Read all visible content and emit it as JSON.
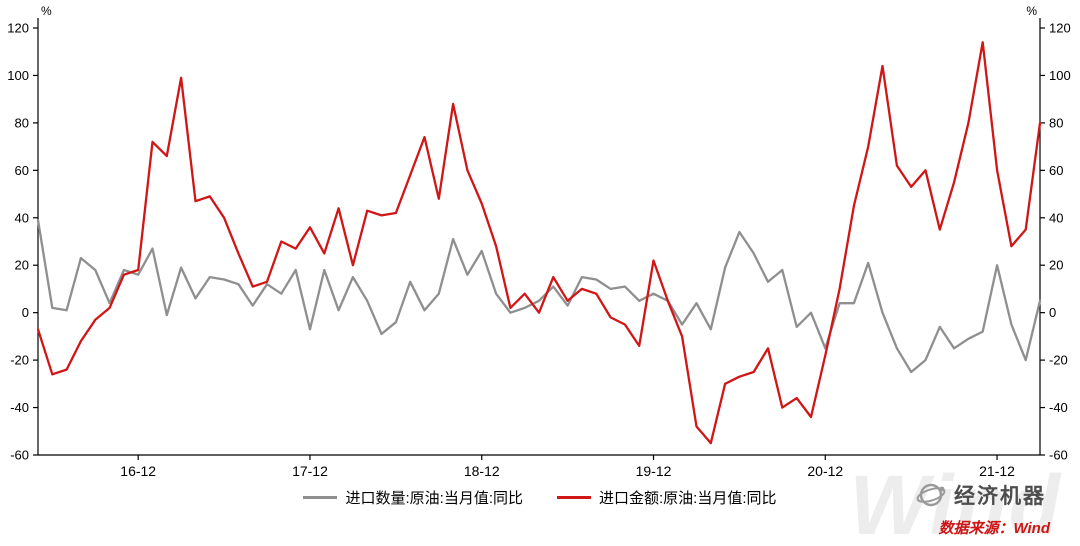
{
  "chart": {
    "y_axis_unit_left": "%",
    "y_axis_unit_right": "%",
    "source_label": "数据来源：",
    "source_name": "Wind",
    "logo_text": "经济机器",
    "watermark": "Wind",
    "colors": {
      "quantity_series": "#8f8f8f",
      "value_series": "#d01616",
      "source_text": "#cc1616",
      "axis": "#000000"
    }
  },
  "chart_data": {
    "type": "line",
    "title": "",
    "xlabel": "",
    "ylabel": "%",
    "y_unit": "%",
    "ylim": [
      -60,
      120
    ],
    "y_ticks": [
      120,
      100,
      80,
      60,
      40,
      20,
      0,
      -20,
      -40,
      -60
    ],
    "x_tick_labels": [
      "16-12",
      "17-12",
      "18-12",
      "19-12",
      "20-12",
      "21-12"
    ],
    "grid": false,
    "legend_position": "bottom",
    "x": [
      "16-05",
      "16-06",
      "16-07",
      "16-08",
      "16-09",
      "16-10",
      "16-11",
      "16-12",
      "17-01",
      "17-02",
      "17-03",
      "17-04",
      "17-05",
      "17-06",
      "17-07",
      "17-08",
      "17-09",
      "17-10",
      "17-11",
      "17-12",
      "18-01",
      "18-02",
      "18-03",
      "18-04",
      "18-05",
      "18-06",
      "18-07",
      "18-08",
      "18-09",
      "18-10",
      "18-11",
      "18-12",
      "19-01",
      "19-02",
      "19-03",
      "19-04",
      "19-05",
      "19-06",
      "19-07",
      "19-08",
      "19-09",
      "19-10",
      "19-11",
      "19-12",
      "20-01",
      "20-02",
      "20-03",
      "20-04",
      "20-05",
      "20-06",
      "20-07",
      "20-08",
      "20-09",
      "20-10",
      "20-11",
      "20-12",
      "21-01",
      "21-02",
      "21-03",
      "21-04",
      "21-05",
      "21-06",
      "21-07",
      "21-08",
      "21-09",
      "21-10",
      "21-11",
      "21-12",
      "22-01",
      "22-02",
      "22-03"
    ],
    "series": [
      {
        "name": "进口数量:原油:当月值:同比",
        "color": "#8f8f8f",
        "values": [
          39,
          2,
          1,
          23,
          18,
          4,
          18,
          16,
          27,
          -1,
          19,
          6,
          15,
          14,
          12,
          3,
          12,
          8,
          18,
          -7,
          18,
          1,
          15,
          5,
          -9,
          -4,
          13,
          1,
          8,
          31,
          16,
          26,
          8,
          0,
          2,
          5,
          11,
          3,
          15,
          14,
          10,
          11,
          5,
          8,
          5,
          -5,
          4,
          -7,
          19,
          34,
          25,
          13,
          18,
          -6,
          0,
          -15,
          4,
          4,
          21,
          0,
          -15,
          -25,
          -20,
          -6,
          -15,
          -11,
          -8,
          20,
          -5,
          -20,
          5
        ]
      },
      {
        "name": "进口金额:原油:当月值:同比",
        "color": "#d01616",
        "values": [
          -7,
          -26,
          -24,
          -12,
          -3,
          2,
          16,
          18,
          72,
          66,
          99,
          47,
          49,
          40,
          25,
          11,
          13,
          30,
          27,
          36,
          25,
          44,
          20,
          43,
          41,
          42,
          58,
          74,
          48,
          88,
          60,
          46,
          28,
          2,
          8,
          0,
          15,
          5,
          10,
          8,
          -2,
          -5,
          -14,
          22,
          5,
          -10,
          -48,
          -55,
          -30,
          -27,
          -25,
          -15,
          -40,
          -36,
          -44,
          -18,
          10,
          45,
          70,
          104,
          62,
          53,
          60,
          35,
          55,
          80,
          114,
          60,
          28,
          35,
          80
        ]
      }
    ]
  }
}
